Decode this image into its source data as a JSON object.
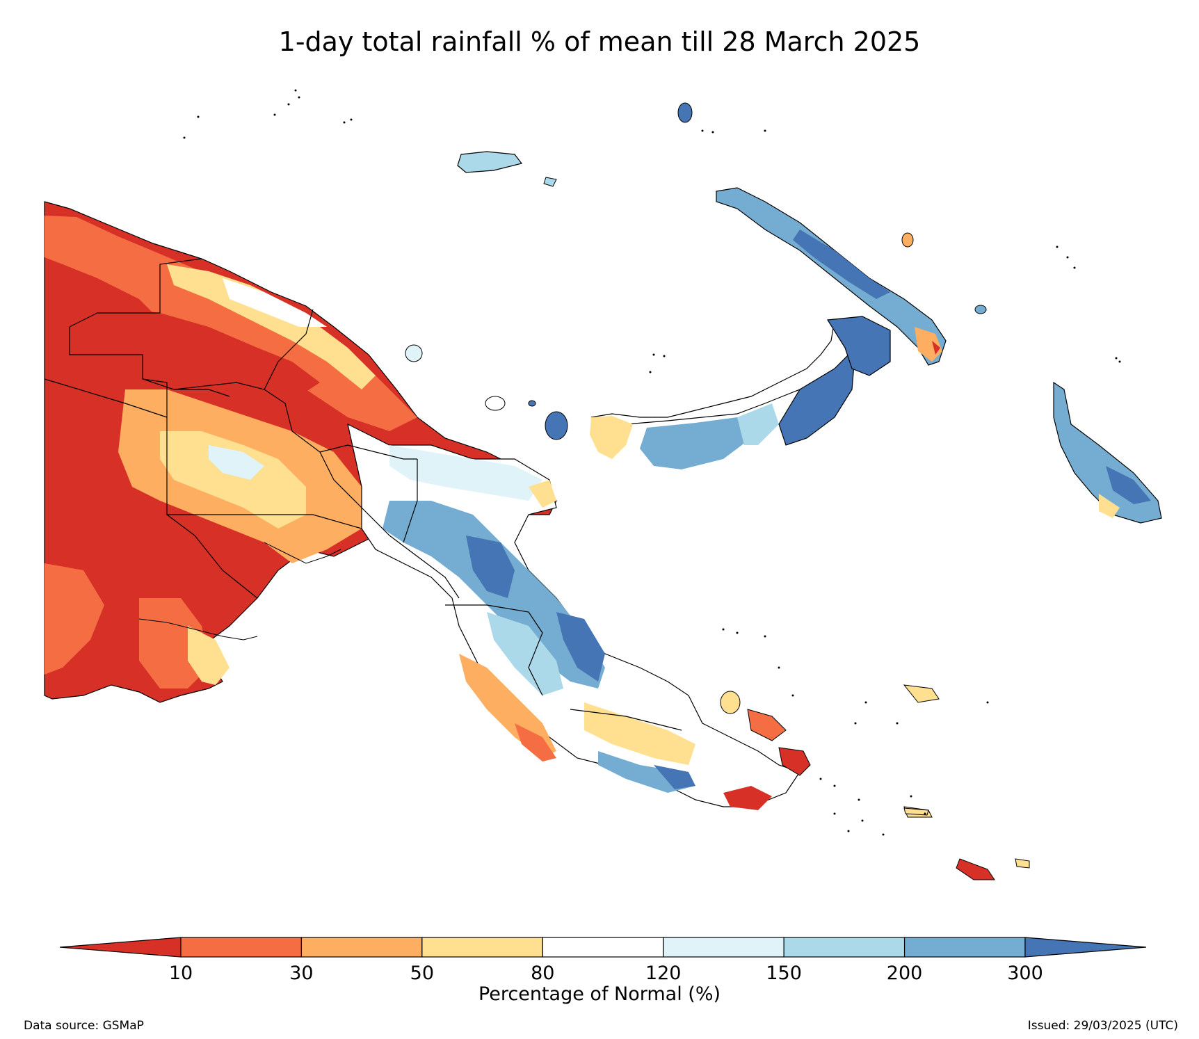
{
  "title": "1-day total rainfall % of mean till 28 March 2025",
  "colorbar": {
    "label": "Percentage of Normal (%)",
    "ticks": [
      "10",
      "30",
      "50",
      "80",
      "120",
      "150",
      "200",
      "300"
    ],
    "colors": [
      "#d73027",
      "#f46d43",
      "#fdae61",
      "#fee090",
      "#ffffff",
      "#e0f3f8",
      "#abd9e9",
      "#74add1",
      "#4575b4"
    ],
    "extend": "both"
  },
  "footer": {
    "source": "Data source: GSMaP",
    "issued": "Issued: 29/03/2025 (UTC)"
  },
  "map": {
    "region": "Papua New Guinea",
    "legend_classes": [
      "<10",
      "10-30",
      "30-50",
      "50-80",
      "80-120",
      "120-150",
      "150-200",
      "200-300",
      ">300"
    ]
  }
}
